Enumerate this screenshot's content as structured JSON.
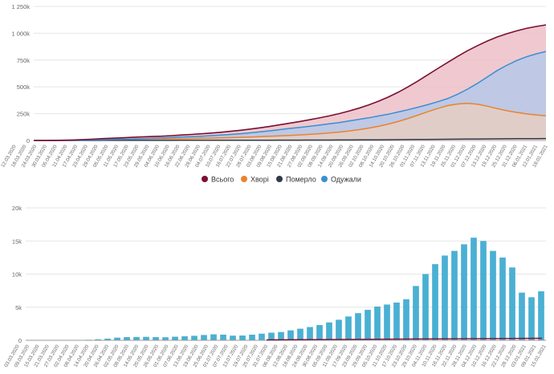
{
  "colors": {
    "total": "#7a0f33",
    "total_fill": "#ecc0c7",
    "sick": "#e8832e",
    "sick_fill": "#f7d0b6",
    "dead": "#2f3a4a",
    "recovered": "#3a8fd1",
    "recovered_fill": "#b9c8e6",
    "bar": "#4ab0d3",
    "axis": "#999999",
    "grid": "#e6e6e6"
  },
  "chart_data": [
    {
      "type": "area",
      "ylim": [
        0,
        1250000
      ],
      "yticks": [
        {
          "value": 0,
          "label": "0"
        },
        {
          "value": 250000,
          "label": "250k"
        },
        {
          "value": 500000,
          "label": "500k"
        },
        {
          "value": 750000,
          "label": "750k"
        },
        {
          "value": 1000000,
          "label": "1 000k"
        },
        {
          "value": 1250000,
          "label": "1 250k"
        }
      ],
      "xticks": [
        "12.03.2020",
        "18.03.2020",
        "24.03.2020",
        "30.03.2020",
        "05.04.2020",
        "11.04.2020",
        "17.04.2020",
        "23.04.2020",
        "29.04.2020",
        "05.05.2020",
        "11.05.2020",
        "17.05.2020",
        "23.05.2020",
        "29.05.2020",
        "04.06.2020",
        "10.06.2020",
        "16.06.2020",
        "22.06.2020",
        "28.06.2020",
        "04.07.2020",
        "10.07.2020",
        "16.07.2020",
        "22.07.2020",
        "28.07.2020",
        "03.08.2020",
        "09.08.2020",
        "15.08.2020",
        "21.08.2020",
        "27.08.2020",
        "02.09.2020",
        "08.09.2020",
        "14.09.2020",
        "20.09.2020",
        "26.09.2020",
        "02.10.2020",
        "08.10.2020",
        "14.10.2020",
        "20.10.2020",
        "26.10.2020",
        "01.11.2020",
        "07.11.2020",
        "13.11.2020",
        "19.11.2020",
        "25.11.2020",
        "01.12.2020",
        "07.12.2020",
        "13.12.2020",
        "19.12.2020",
        "25.12.2020",
        "31.12.2020",
        "06.01.2021",
        "12.01.2021",
        "18.01.2021"
      ],
      "series": [
        {
          "key": "total",
          "name": "Всього",
          "values": [
            0,
            50,
            500,
            2000,
            4500,
            8000,
            12000,
            17000,
            21000,
            25000,
            29000,
            33000,
            37000,
            40000,
            45000,
            51000,
            56000,
            62000,
            69000,
            76000,
            85000,
            95000,
            106000,
            118000,
            132000,
            147000,
            162000,
            177000,
            193000,
            210000,
            229000,
            250000,
            274000,
            301000,
            331000,
            366000,
            405000,
            450000,
            500000,
            555000,
            612000,
            670000,
            727000,
            783000,
            835000,
            882000,
            925000,
            963000,
            995000,
            1022000,
            1045000,
            1063000,
            1078000
          ]
        },
        {
          "key": "sick",
          "name": "Хворі",
          "values": [
            0,
            40,
            400,
            1500,
            3000,
            5000,
            7000,
            9500,
            11000,
            12500,
            13500,
            14500,
            15000,
            15500,
            16000,
            17000,
            18500,
            20000,
            22000,
            24000,
            26500,
            29000,
            32000,
            35000,
            39000,
            43000,
            47000,
            52000,
            57000,
            63000,
            70000,
            78000,
            88000,
            100000,
            115000,
            132000,
            153000,
            177000,
            205000,
            236000,
            268000,
            298000,
            325000,
            340000,
            346000,
            338000,
            320000,
            298000,
            278000,
            262000,
            248000,
            238000,
            230000
          ]
        },
        {
          "key": "dead",
          "name": "Померло",
          "values": [
            0,
            1,
            10,
            50,
            100,
            200,
            300,
            400,
            500,
            600,
            700,
            800,
            900,
            1000,
            1100,
            1200,
            1350,
            1500,
            1650,
            1800,
            1950,
            2100,
            2250,
            2400,
            2600,
            2800,
            3000,
            3200,
            3400,
            3700,
            4000,
            4300,
            4700,
            5100,
            5600,
            6200,
            6800,
            7500,
            8200,
            9000,
            9800,
            10600,
            11400,
            12200,
            13000,
            13800,
            14500,
            15200,
            15800,
            16400,
            16900,
            17400,
            17900
          ]
        },
        {
          "key": "recovered",
          "name": "Одужали",
          "values": [
            0,
            0,
            20,
            200,
            800,
            2000,
            4000,
            7000,
            9000,
            11500,
            14000,
            17500,
            21000,
            23500,
            28000,
            33000,
            36000,
            40000,
            45000,
            50000,
            56000,
            63000,
            71000,
            80000,
            90000,
            101000,
            112000,
            122000,
            132000,
            143000,
            155000,
            167000,
            181000,
            196000,
            211000,
            228000,
            245000,
            266000,
            287000,
            310000,
            334000,
            361000,
            390000,
            430000,
            476000,
            530000,
            590000,
            650000,
            700000,
            744000,
            780000,
            808000,
            830000
          ]
        }
      ],
      "legend": {
        "position": "bottom"
      }
    },
    {
      "type": "bar",
      "ylim": [
        0,
        20000
      ],
      "yticks": [
        {
          "value": 0,
          "label": "0"
        },
        {
          "value": 5000,
          "label": "5k"
        },
        {
          "value": 10000,
          "label": "10k"
        },
        {
          "value": 15000,
          "label": "15k"
        },
        {
          "value": 20000,
          "label": "20k"
        }
      ],
      "xticks": [
        "03.03.2020",
        "09.03.2020",
        "15.03.2020",
        "21.03.2020",
        "27.03.2020",
        "02.04.2020",
        "08.04.2020",
        "14.04.2020",
        "20.04.2020",
        "26.04.2020",
        "02.05.2020",
        "08.05.2020",
        "14.05.2020",
        "20.05.2020",
        "26.05.2020",
        "01.06.2020",
        "07.06.2020",
        "13.06.2020",
        "19.06.2020",
        "25.06.2020",
        "01.07.2020",
        "07.07.2020",
        "13.07.2020",
        "19.07.2020",
        "25.07.2020",
        "31.07.2020",
        "06.08.2020",
        "12.08.2020",
        "18.08.2020",
        "24.08.2020",
        "30.08.2020",
        "05.09.2020",
        "11.09.2020",
        "17.09.2020",
        "23.09.2020",
        "29.09.2020",
        "05.10.2020",
        "11.10.2020",
        "17.10.2020",
        "23.10.2020",
        "29.10.2020",
        "04.11.2020",
        "10.11.2020",
        "16.11.2020",
        "22.11.2020",
        "28.11.2020",
        "04.12.2020",
        "10.12.2020",
        "16.12.2020",
        "22.12.2020",
        "28.12.2020",
        "03.01.2021",
        "09.01.2021",
        "15.01.2021"
      ],
      "series": [
        {
          "name": "",
          "values": [
            0,
            0,
            0,
            0,
            0,
            30,
            80,
            150,
            250,
            400,
            480,
            500,
            520,
            480,
            460,
            540,
            600,
            680,
            800,
            900,
            850,
            700,
            720,
            850,
            1000,
            1150,
            1250,
            1500,
            1750,
            2000,
            2300,
            2700,
            3100,
            3600,
            4100,
            4600,
            5100,
            5400,
            5700,
            6200,
            8200,
            10000,
            11500,
            12800,
            13500,
            14500,
            15500,
            15000,
            13500,
            12500,
            11000,
            7200,
            6500,
            7400
          ]
        }
      ]
    }
  ]
}
